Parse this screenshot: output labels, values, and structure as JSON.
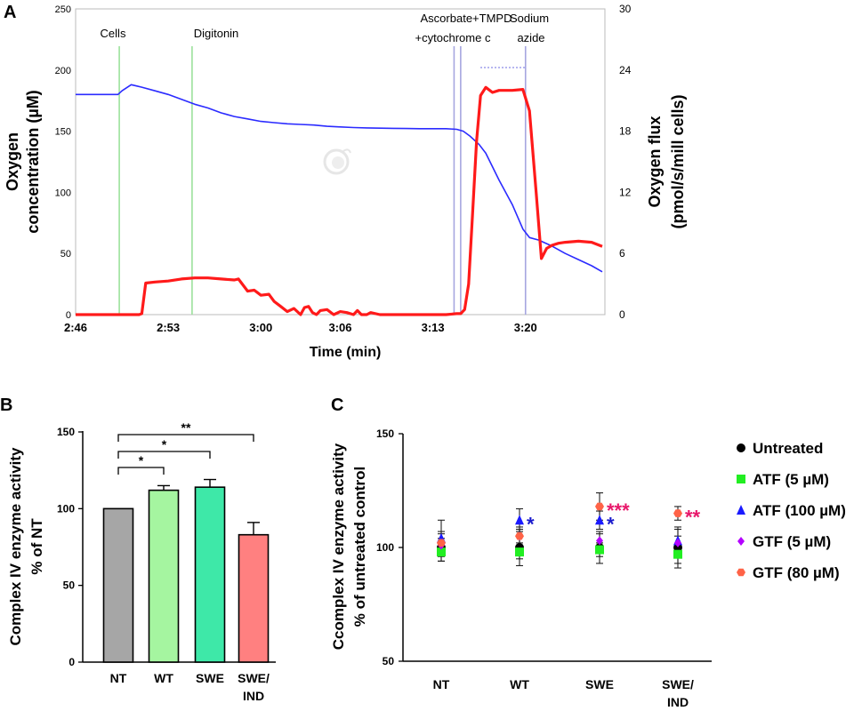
{
  "colors": {
    "blue_line": "#2b2bff",
    "red_line": "#ff1a1a",
    "green_marker": "#9be29b",
    "blue_marker": "#a6a6e0",
    "bar_NT": "#a6a6a6",
    "bar_WT": "#a5f5a0",
    "bar_SWE": "#3ee8a8",
    "bar_SWE_IND": "#ff8080",
    "untreated": "#000000",
    "atf5": "#22ee22",
    "atf100": "#1a1aff",
    "gtf5": "#b400ff",
    "gtf80": "#ff6347",
    "star_blue": "#1a1acc",
    "star_pink": "#e8176a"
  },
  "chart_data": [
    {
      "panel": "A",
      "type": "line",
      "xlabel": "Time (min)",
      "ylabel_left_1": "Oxygen",
      "ylabel_left_2": "concentration (µM)",
      "ylabel_right_1": "Oxygen flux",
      "ylabel_right_2": "(pmol/s/mill cells)",
      "x_range_min": [
        166,
        206
      ],
      "x_ticks": [
        166,
        173,
        180,
        186,
        193,
        200
      ],
      "x_tick_labels": [
        "2:46",
        "2:53",
        "3:00",
        "3:06",
        "3:13",
        "3:20"
      ],
      "ylim_left": [
        0,
        250
      ],
      "yticks_left": [
        0,
        50,
        100,
        150,
        200,
        250
      ],
      "ylim_right": [
        0,
        30
      ],
      "yticks_right": [
        0,
        6,
        12,
        18,
        24,
        30
      ],
      "event_markers": [
        {
          "label": "Cells",
          "t": 169.3,
          "kind": "green"
        },
        {
          "label": "Digitonin",
          "t": 174.8,
          "kind": "green"
        },
        {
          "label": "Ascorbate+TMPD",
          "t": 194.6,
          "kind": "blue"
        },
        {
          "label": "+cytochrome c",
          "t": 195.1,
          "kind": "blue"
        },
        {
          "label": "Sodium",
          "t": 200.0,
          "kind": "blue"
        },
        {
          "label": "azide",
          "t": 200.0,
          "kind": "blue"
        }
      ],
      "series": [
        {
          "name": "Oxygen concentration",
          "axis": "left",
          "x": [
            166,
            167.5,
            169.2,
            169.5,
            170.2,
            170.6,
            171,
            172,
            173,
            174,
            175,
            176,
            177,
            178,
            179,
            180,
            181,
            182,
            183,
            184,
            185,
            186,
            187,
            188,
            189,
            190,
            191,
            192,
            193,
            194,
            194.8,
            195.3,
            195.8,
            196.5,
            197,
            198,
            199,
            199.8,
            200.3,
            201,
            202,
            203,
            204,
            205,
            205.8
          ],
          "values": [
            180,
            180,
            180,
            183,
            188,
            187,
            186,
            183,
            180,
            176,
            172,
            169,
            165,
            162,
            160,
            158,
            157,
            156,
            155.5,
            155,
            154,
            153.5,
            153,
            152.7,
            152.5,
            152.3,
            152.2,
            152,
            152,
            152,
            151.5,
            150,
            146,
            139,
            132,
            110,
            90,
            70,
            63,
            61,
            56,
            50,
            45,
            40,
            35
          ]
        },
        {
          "name": "Oxygen flux",
          "axis": "right",
          "x": [
            166,
            167.5,
            169,
            170,
            170.8,
            171,
            171.3,
            172,
            173,
            174,
            175,
            176,
            177,
            178,
            178.3,
            179,
            179.5,
            180,
            180.6,
            181,
            181.5,
            182,
            182.5,
            183,
            183.3,
            183.6,
            183.9,
            184.2,
            184.5,
            185,
            185.5,
            186,
            186.5,
            187,
            187.3,
            187.6,
            188,
            188.3,
            189,
            190,
            191,
            192,
            193,
            194,
            194.8,
            195.1,
            195.4,
            195.7,
            196,
            196.3,
            196.6,
            197,
            197.5,
            198,
            199,
            199.8,
            200.3,
            200.8,
            201.2,
            201.6,
            202,
            202.5,
            203,
            204,
            205,
            205.8
          ],
          "values": [
            0,
            0,
            0,
            0,
            0,
            0.1,
            3.1,
            3.2,
            3.3,
            3.5,
            3.6,
            3.6,
            3.5,
            3.4,
            3.5,
            2.3,
            2.4,
            1.9,
            2.0,
            1.3,
            0.8,
            0.3,
            0.6,
            0.0,
            0.7,
            0.8,
            0.2,
            0.0,
            0.4,
            0.5,
            0.0,
            0.3,
            0.2,
            0.0,
            0.4,
            0.0,
            0.0,
            0.2,
            0.0,
            0.0,
            0.0,
            0.0,
            0.0,
            0.0,
            0.1,
            0.1,
            0.5,
            3.0,
            10,
            17,
            21.5,
            22.3,
            21.8,
            22,
            22,
            22.1,
            20,
            12,
            5.5,
            6.5,
            6.8,
            7.0,
            7.1,
            7.2,
            7.1,
            6.7
          ]
        }
      ]
    },
    {
      "panel": "B",
      "type": "bar",
      "ylabel_1": "Complex IV enzyme activity",
      "ylabel_2": "% of  NT",
      "ylim": [
        0,
        150
      ],
      "yticks": [
        0,
        50,
        100,
        150
      ],
      "categories": [
        "NT",
        "WT",
        "SWE",
        "SWE/ IND"
      ],
      "category_lines": [
        [
          "NT"
        ],
        [
          "WT"
        ],
        [
          "SWE"
        ],
        [
          "SWE/",
          "IND"
        ]
      ],
      "values": [
        100,
        112,
        114,
        83
      ],
      "errors": [
        0,
        3,
        5,
        8
      ],
      "significance": [
        {
          "from": 0,
          "to": 1,
          "label": "*"
        },
        {
          "from": 0,
          "to": 2,
          "label": "*"
        },
        {
          "from": 0,
          "to": 3,
          "label": "**"
        }
      ]
    },
    {
      "panel": "C",
      "type": "scatter",
      "ylabel_1": "Ccomplex IV enzyme activity",
      "ylabel_2": "% of untreated control",
      "ylim": [
        50,
        150
      ],
      "yticks": [
        50,
        100,
        150
      ],
      "categories": [
        "NT",
        "WT",
        "SWE",
        "SWE/ IND"
      ],
      "category_lines": [
        [
          "NT"
        ],
        [
          "WT"
        ],
        [
          "SWE"
        ],
        [
          "SWE/",
          "IND"
        ]
      ],
      "series": [
        {
          "name": "Untreated",
          "marker": "circle",
          "values": [
            100,
            100,
            100,
            100
          ],
          "errors": [
            6,
            8,
            7,
            9
          ]
        },
        {
          "name": "ATF (5 µM)",
          "marker": "square",
          "values": [
            98,
            98,
            99,
            97
          ],
          "errors": [
            4,
            3,
            3,
            4
          ]
        },
        {
          "name": "ATF (100 µM)",
          "marker": "triangle",
          "values": [
            104,
            112,
            112,
            103
          ],
          "errors": [
            8,
            5,
            4,
            5
          ]
        },
        {
          "name": "GTF (5 µM)",
          "marker": "diamond",
          "values": [
            101,
            105,
            103,
            102
          ],
          "errors": [
            3,
            3,
            3,
            3
          ]
        },
        {
          "name": "GTF (80 µM)",
          "marker": "hexagon",
          "values": [
            102,
            105,
            118,
            115
          ],
          "errors": [
            5,
            4,
            6,
            3
          ]
        }
      ],
      "stars": [
        {
          "category": 1,
          "label": "*",
          "color": "blue",
          "at": 112
        },
        {
          "category": 2,
          "label": "*",
          "color": "blue",
          "at": 112
        },
        {
          "category": 2,
          "label": "***",
          "color": "pink",
          "at": 118
        },
        {
          "category": 3,
          "label": "**",
          "color": "pink",
          "at": 115
        }
      ]
    }
  ],
  "panel_labels": [
    "A",
    "B",
    "C"
  ]
}
